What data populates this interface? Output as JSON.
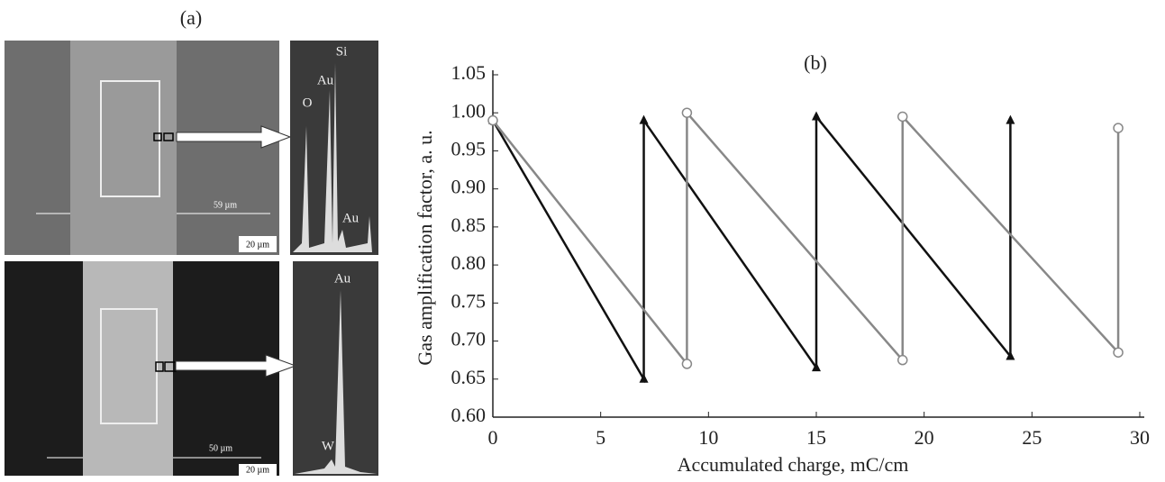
{
  "panel_a": {
    "label": "(a)",
    "top_spectrum": [
      "Si",
      "Au",
      "O",
      "Au"
    ],
    "top_scale": "59 µm",
    "top_bar": "20 µm",
    "bottom_spectrum": [
      "Au",
      "W"
    ],
    "bottom_scale": "50 µm",
    "bottom_bar": "20 µm"
  },
  "chart_data": {
    "type": "line",
    "title": "(b)",
    "x_label": "Accumulated charge, mC/cm",
    "y_label": "Gas amplification factor, a. u.",
    "xlim": [
      0,
      30
    ],
    "ylim": [
      0.6,
      1.05
    ],
    "xticks": [
      0,
      5,
      10,
      15,
      20,
      25,
      30
    ],
    "yticks": [
      {
        "value": 0.6,
        "label": "0.60"
      },
      0.65,
      {
        "value": 0.7,
        "label": "0.70"
      },
      0.75,
      {
        "value": 0.8,
        "label": "0.80"
      },
      0.85,
      {
        "value": 0.9,
        "label": "0.90"
      },
      0.95,
      {
        "value": 1.0,
        "label": "1.00"
      },
      1.05
    ],
    "series": [
      {
        "color": "#111111",
        "marker": "triangle",
        "x": [
          0,
          7,
          7,
          15,
          15,
          24,
          24
        ],
        "values": [
          0.99,
          0.65,
          0.99,
          0.665,
          0.995,
          0.68,
          0.99
        ]
      },
      {
        "color": "#888888",
        "marker": "circle",
        "x": [
          0,
          9,
          9,
          19,
          19,
          29,
          29
        ],
        "values": [
          0.99,
          0.67,
          1.0,
          0.675,
          0.995,
          0.685,
          0.98
        ]
      }
    ]
  }
}
